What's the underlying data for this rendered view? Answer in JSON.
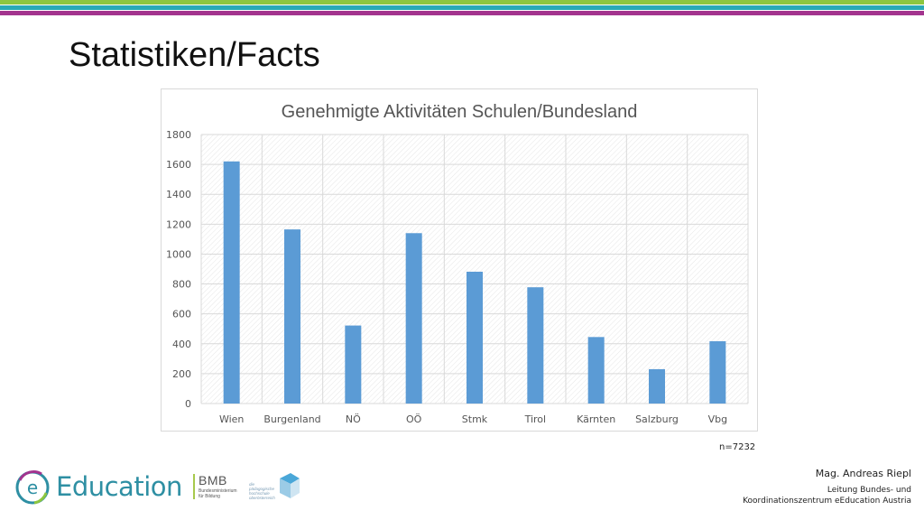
{
  "slide": {
    "title": "Statistiken/Facts",
    "sample_note": "n=7232",
    "author_name": "Mag. Andreas Riepl",
    "author_role_line1": "Leitung Bundes- und",
    "author_role_line2": "Koordinationszentrum eEducation Austria"
  },
  "logos": {
    "eeducation_letter": "e",
    "eeducation_text": "Education",
    "bmb_text": "BMB",
    "bmb_sub1": "Bundesministerium",
    "bmb_sub2": "für Bildung",
    "ph_text1": "die pädagogische",
    "ph_text2": "hochschule",
    "ph_text3": "oberösterreich"
  },
  "colors": {
    "bar": "#5b9bd5",
    "stripe_green": "#8dc63f",
    "stripe_teal": "#2aa9b5",
    "stripe_purple": "#a3348e",
    "brand_teal": "#2e8fa3"
  },
  "chart_data": {
    "type": "bar",
    "title": "Genehmigte Aktivitäten Schulen/Bundesland",
    "categories": [
      "Wien",
      "Burgenland",
      "NÖ",
      "OÖ",
      "Stmk",
      "Tirol",
      "Kärnten",
      "Salzburg",
      "Vbg"
    ],
    "values": [
      1620,
      1165,
      522,
      1140,
      882,
      778,
      445,
      230,
      417
    ],
    "ylim": [
      0,
      1800
    ],
    "yticks": [
      0,
      200,
      400,
      600,
      800,
      1000,
      1200,
      1400,
      1600,
      1800
    ],
    "grid": true,
    "legend": "none"
  }
}
